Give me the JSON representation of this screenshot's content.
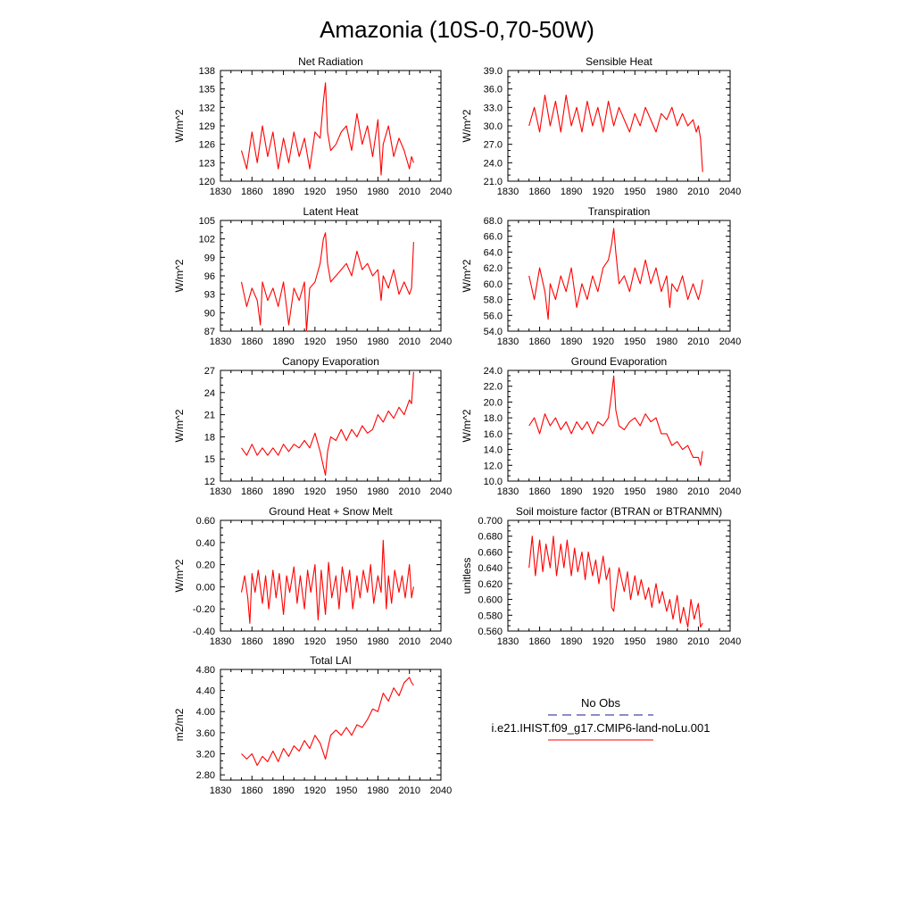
{
  "title": "Amazonia (10S-0,70-50W)",
  "legend": {
    "items": [
      {
        "label": "No Obs",
        "color": "#1a1a8c",
        "style": "dashed"
      },
      {
        "label": "i.e21.IHIST.f09_g17.CMIP6-land-noLu.001",
        "color": "#ff0000",
        "style": "solid"
      }
    ]
  },
  "chart_data": [
    {
      "type": "line",
      "title": "Net Radiation",
      "xlabel": "",
      "ylabel": "W/m^2",
      "xlim": [
        1830,
        2040
      ],
      "ylim": [
        120,
        138
      ],
      "xticks": [
        "1830",
        "1860",
        "1890",
        "1920",
        "1950",
        "1980",
        "2010",
        "2040"
      ],
      "yticks": [
        "120",
        "123",
        "126",
        "129",
        "132",
        "135",
        "138"
      ],
      "series": [
        {
          "color": "#ff0000",
          "x": [
            1850,
            1855,
            1860,
            1865,
            1870,
            1875,
            1880,
            1885,
            1890,
            1895,
            1900,
            1905,
            1910,
            1915,
            1920,
            1925,
            1928,
            1930,
            1932,
            1935,
            1940,
            1945,
            1950,
            1955,
            1960,
            1965,
            1970,
            1975,
            1980,
            1983,
            1985,
            1990,
            1995,
            2000,
            2005,
            2010,
            2012,
            2014
          ],
          "values": [
            125,
            122,
            128,
            123,
            129,
            124,
            128,
            122,
            127,
            123,
            128,
            124,
            127,
            122,
            128,
            127,
            133,
            136,
            128,
            125,
            126,
            128,
            129,
            125,
            131,
            126,
            129,
            124,
            130,
            121,
            126,
            129,
            124,
            127,
            125,
            122,
            124,
            123
          ]
        }
      ]
    },
    {
      "type": "line",
      "title": "Sensible Heat",
      "xlabel": "",
      "ylabel": "W/m^2",
      "xlim": [
        1830,
        2040
      ],
      "ylim": [
        21,
        39
      ],
      "xticks": [
        "1830",
        "1860",
        "1890",
        "1920",
        "1950",
        "1980",
        "2010",
        "2040"
      ],
      "yticks": [
        "21.0",
        "24.0",
        "27.0",
        "30.0",
        "33.0",
        "36.0",
        "39.0"
      ],
      "series": [
        {
          "color": "#ff0000",
          "x": [
            1850,
            1855,
            1860,
            1865,
            1870,
            1875,
            1880,
            1885,
            1890,
            1895,
            1900,
            1905,
            1910,
            1915,
            1920,
            1925,
            1930,
            1935,
            1940,
            1945,
            1950,
            1955,
            1960,
            1965,
            1970,
            1975,
            1980,
            1985,
            1990,
            1995,
            2000,
            2005,
            2008,
            2010,
            2012,
            2014
          ],
          "values": [
            30,
            33,
            29,
            35,
            30,
            34,
            29,
            35,
            30,
            33,
            29,
            34,
            30,
            33,
            29,
            34,
            30,
            33,
            31,
            29,
            32,
            30,
            33,
            31,
            29,
            32,
            31,
            33,
            30,
            32,
            30,
            31,
            29,
            30,
            28,
            22.5
          ]
        }
      ]
    },
    {
      "type": "line",
      "title": "Latent Heat",
      "xlabel": "",
      "ylabel": "W/m^2",
      "xlim": [
        1830,
        2040
      ],
      "ylim": [
        87,
        105
      ],
      "xticks": [
        "1830",
        "1860",
        "1890",
        "1920",
        "1950",
        "1980",
        "2010",
        "2040"
      ],
      "yticks": [
        "87",
        "90",
        "93",
        "96",
        "99",
        "102",
        "105"
      ],
      "series": [
        {
          "color": "#ff0000",
          "x": [
            1850,
            1855,
            1860,
            1865,
            1868,
            1870,
            1875,
            1880,
            1885,
            1890,
            1895,
            1900,
            1905,
            1910,
            1912,
            1915,
            1920,
            1925,
            1928,
            1930,
            1932,
            1935,
            1940,
            1945,
            1950,
            1955,
            1960,
            1965,
            1970,
            1975,
            1980,
            1983,
            1985,
            1990,
            1995,
            2000,
            2005,
            2010,
            2012,
            2014
          ],
          "values": [
            95,
            91,
            94,
            92,
            88,
            95,
            92,
            94,
            91,
            95,
            88,
            94,
            92,
            95,
            87,
            94,
            95,
            98,
            102,
            103,
            98,
            95,
            96,
            97,
            98,
            96,
            100,
            97,
            98,
            96,
            97,
            92,
            96,
            94,
            97,
            93,
            95,
            93,
            94,
            101.5
          ]
        }
      ]
    },
    {
      "type": "line",
      "title": "Transpiration",
      "xlabel": "",
      "ylabel": "W/m^2",
      "xlim": [
        1830,
        2040
      ],
      "ylim": [
        54,
        68
      ],
      "xticks": [
        "1830",
        "1860",
        "1890",
        "1920",
        "1950",
        "1980",
        "2010",
        "2040"
      ],
      "yticks": [
        "54.0",
        "56.0",
        "58.0",
        "60.0",
        "62.0",
        "64.0",
        "66.0",
        "68.0"
      ],
      "series": [
        {
          "color": "#ff0000",
          "x": [
            1850,
            1855,
            1860,
            1865,
            1868,
            1870,
            1875,
            1880,
            1885,
            1890,
            1895,
            1900,
            1905,
            1910,
            1915,
            1920,
            1925,
            1928,
            1930,
            1932,
            1935,
            1940,
            1945,
            1950,
            1955,
            1960,
            1965,
            1970,
            1975,
            1980,
            1983,
            1985,
            1990,
            1995,
            2000,
            2005,
            2010,
            2012,
            2014
          ],
          "values": [
            61,
            58,
            62,
            59,
            55.5,
            60,
            58,
            61,
            59,
            62,
            57,
            60,
            58,
            61,
            59,
            62,
            63,
            65,
            67,
            64,
            60,
            61,
            59,
            62,
            60,
            63,
            60,
            62,
            59,
            61,
            57,
            60,
            59,
            61,
            58,
            60,
            58,
            59,
            60.5
          ]
        }
      ]
    },
    {
      "type": "line",
      "title": "Canopy Evaporation",
      "xlabel": "",
      "ylabel": "W/m^2",
      "xlim": [
        1830,
        2040
      ],
      "ylim": [
        12,
        27
      ],
      "xticks": [
        "1830",
        "1860",
        "1890",
        "1920",
        "1950",
        "1980",
        "2010",
        "2040"
      ],
      "yticks": [
        "12",
        "15",
        "18",
        "21",
        "24",
        "27"
      ],
      "series": [
        {
          "color": "#ff0000",
          "x": [
            1850,
            1855,
            1860,
            1865,
            1870,
            1875,
            1880,
            1885,
            1890,
            1895,
            1900,
            1905,
            1910,
            1915,
            1920,
            1925,
            1928,
            1930,
            1932,
            1935,
            1940,
            1945,
            1950,
            1955,
            1960,
            1965,
            1970,
            1975,
            1980,
            1985,
            1990,
            1995,
            2000,
            2005,
            2010,
            2012,
            2014
          ],
          "values": [
            16.5,
            15.5,
            17,
            15.5,
            16.5,
            15.5,
            16.5,
            15.5,
            17,
            16,
            17,
            16.5,
            17.5,
            16.5,
            18.5,
            16,
            14,
            12.8,
            16,
            18,
            17.5,
            19,
            17.5,
            19,
            18,
            19.5,
            18.5,
            19,
            21,
            20,
            21.5,
            20.5,
            22,
            21,
            23,
            22.5,
            26.8
          ]
        }
      ]
    },
    {
      "type": "line",
      "title": "Ground Evaporation",
      "xlabel": "",
      "ylabel": "W/m^2",
      "xlim": [
        1830,
        2040
      ],
      "ylim": [
        10,
        24
      ],
      "xticks": [
        "1830",
        "1860",
        "1890",
        "1920",
        "1950",
        "1980",
        "2010",
        "2040"
      ],
      "yticks": [
        "10.0",
        "12.0",
        "14.0",
        "16.0",
        "18.0",
        "20.0",
        "22.0",
        "24.0"
      ],
      "series": [
        {
          "color": "#ff0000",
          "x": [
            1850,
            1855,
            1860,
            1865,
            1870,
            1875,
            1880,
            1885,
            1890,
            1895,
            1900,
            1905,
            1910,
            1915,
            1920,
            1925,
            1928,
            1930,
            1932,
            1935,
            1940,
            1945,
            1950,
            1955,
            1960,
            1965,
            1970,
            1975,
            1980,
            1985,
            1990,
            1995,
            2000,
            2005,
            2010,
            2012,
            2014
          ],
          "values": [
            17,
            18,
            16,
            18.5,
            17,
            18,
            16.5,
            17.5,
            16,
            17.5,
            16.5,
            17.5,
            16,
            17.5,
            17,
            18,
            21,
            23.3,
            19,
            17,
            16.5,
            17.5,
            18,
            17,
            18.5,
            17.5,
            18,
            16,
            16,
            14.5,
            15,
            14,
            14.5,
            13,
            13,
            12,
            13.8
          ]
        }
      ]
    },
    {
      "type": "line",
      "title": "Ground Heat + Snow Melt",
      "xlabel": "",
      "ylabel": "W/m^2",
      "xlim": [
        1830,
        2040
      ],
      "ylim": [
        -0.4,
        0.6
      ],
      "xticks": [
        "1830",
        "1860",
        "1890",
        "1920",
        "1950",
        "1980",
        "2010",
        "2040"
      ],
      "yticks": [
        "-0.40",
        "-0.20",
        "0.00",
        "0.20",
        "0.40",
        "0.60"
      ],
      "series": [
        {
          "color": "#ff0000",
          "x": [
            1850,
            1853,
            1856,
            1858,
            1860,
            1863,
            1866,
            1870,
            1873,
            1876,
            1880,
            1883,
            1886,
            1890,
            1893,
            1896,
            1900,
            1903,
            1906,
            1910,
            1913,
            1916,
            1920,
            1923,
            1926,
            1930,
            1933,
            1936,
            1940,
            1943,
            1946,
            1950,
            1953,
            1956,
            1960,
            1963,
            1966,
            1970,
            1973,
            1976,
            1980,
            1983,
            1985,
            1988,
            1990,
            1993,
            1996,
            2000,
            2003,
            2006,
            2010,
            2012,
            2014
          ],
          "values": [
            -0.05,
            0.1,
            -0.1,
            -0.33,
            0.12,
            -0.05,
            0.15,
            -0.15,
            0.1,
            -0.2,
            0.15,
            -0.1,
            0.12,
            -0.25,
            0.1,
            -0.05,
            0.18,
            -0.15,
            0.1,
            -0.2,
            0.15,
            -0.05,
            0.2,
            -0.3,
            0.15,
            -0.25,
            0.22,
            -0.1,
            0.1,
            -0.2,
            0.18,
            -0.05,
            0.15,
            -0.2,
            0.1,
            -0.1,
            0.15,
            -0.05,
            0.2,
            -0.15,
            0.1,
            -0.05,
            0.42,
            -0.2,
            0.1,
            -0.15,
            0.15,
            -0.05,
            0.1,
            -0.1,
            0.2,
            -0.1,
            0.0
          ]
        }
      ]
    },
    {
      "type": "line",
      "title": "Soil moisture factor (BTRAN or BTRANMN)",
      "xlabel": "",
      "ylabel": "unitless",
      "xlim": [
        1830,
        2040
      ],
      "ylim": [
        0.56,
        0.7
      ],
      "xticks": [
        "1830",
        "1860",
        "1890",
        "1920",
        "1950",
        "1980",
        "2010",
        "2040"
      ],
      "yticks": [
        "0.560",
        "0.580",
        "0.600",
        "0.620",
        "0.640",
        "0.660",
        "0.680",
        "0.700"
      ],
      "series": [
        {
          "color": "#ff0000",
          "x": [
            1850,
            1853,
            1856,
            1860,
            1863,
            1866,
            1870,
            1873,
            1876,
            1880,
            1883,
            1886,
            1890,
            1893,
            1896,
            1900,
            1903,
            1906,
            1910,
            1913,
            1916,
            1920,
            1923,
            1926,
            1928,
            1930,
            1932,
            1935,
            1940,
            1943,
            1946,
            1950,
            1953,
            1956,
            1960,
            1963,
            1966,
            1970,
            1973,
            1976,
            1980,
            1983,
            1986,
            1990,
            1993,
            1996,
            2000,
            2003,
            2006,
            2010,
            2012,
            2014
          ],
          "values": [
            0.64,
            0.68,
            0.63,
            0.675,
            0.635,
            0.67,
            0.64,
            0.68,
            0.63,
            0.67,
            0.64,
            0.675,
            0.63,
            0.665,
            0.635,
            0.66,
            0.625,
            0.66,
            0.63,
            0.65,
            0.62,
            0.655,
            0.625,
            0.64,
            0.59,
            0.585,
            0.61,
            0.64,
            0.61,
            0.635,
            0.6,
            0.63,
            0.605,
            0.625,
            0.6,
            0.615,
            0.59,
            0.62,
            0.595,
            0.61,
            0.585,
            0.6,
            0.575,
            0.605,
            0.57,
            0.59,
            0.565,
            0.6,
            0.575,
            0.595,
            0.565,
            0.57
          ]
        }
      ]
    },
    {
      "type": "line",
      "title": "Total LAI",
      "xlabel": "",
      "ylabel": "m2/m2",
      "xlim": [
        1830,
        2040
      ],
      "ylim": [
        2.7,
        4.8
      ],
      "xticks": [
        "1830",
        "1860",
        "1890",
        "1920",
        "1950",
        "1980",
        "2010",
        "2040"
      ],
      "yticks": [
        "2.80",
        "3.20",
        "3.60",
        "4.00",
        "4.40",
        "4.80"
      ],
      "series": [
        {
          "color": "#ff0000",
          "x": [
            1850,
            1855,
            1860,
            1865,
            1870,
            1875,
            1880,
            1885,
            1890,
            1895,
            1900,
            1905,
            1910,
            1915,
            1920,
            1925,
            1930,
            1935,
            1940,
            1945,
            1950,
            1955,
            1960,
            1965,
            1970,
            1975,
            1980,
            1985,
            1990,
            1995,
            2000,
            2005,
            2010,
            2012,
            2014
          ],
          "values": [
            3.2,
            3.1,
            3.2,
            2.98,
            3.15,
            3.05,
            3.25,
            3.05,
            3.3,
            3.15,
            3.35,
            3.25,
            3.45,
            3.3,
            3.55,
            3.4,
            3.1,
            3.55,
            3.65,
            3.55,
            3.7,
            3.55,
            3.75,
            3.7,
            3.85,
            4.05,
            4.0,
            4.35,
            4.2,
            4.45,
            4.3,
            4.55,
            4.65,
            4.55,
            4.5
          ]
        }
      ]
    }
  ]
}
